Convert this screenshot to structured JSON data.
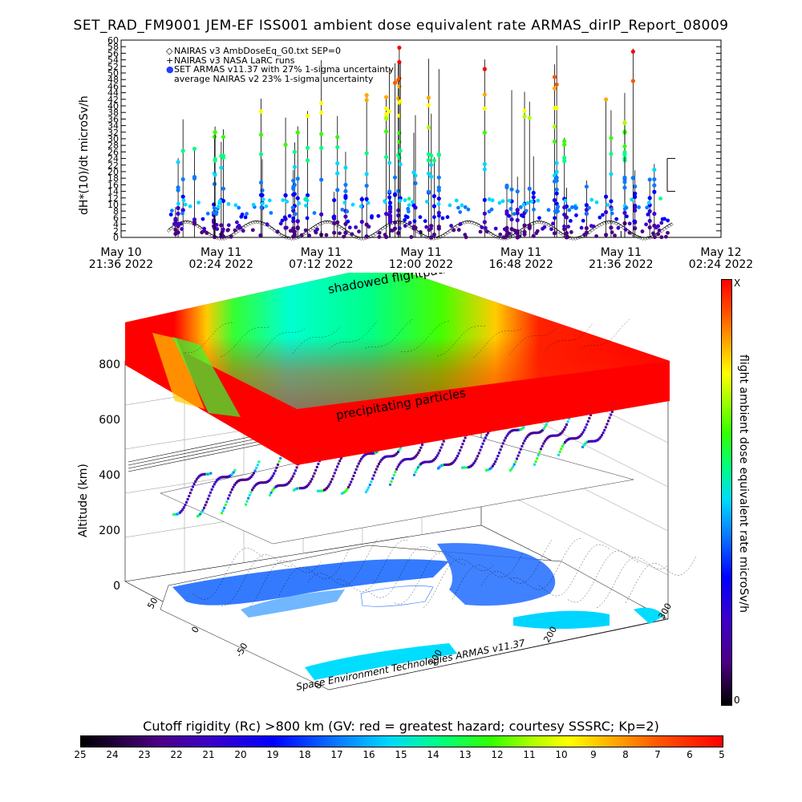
{
  "title": "SET_RAD_FM9001  JEM-EF ISS001 ambient dose equivalent rate ARMAS_dirIP_Report_08009",
  "top_chart": {
    "ylabel": "dH*(10)/dt microSv/h",
    "legend": [
      "NAIRAS v3 AmbDoseEq_G0.txt SEP=0",
      "NAIRAS v3 NASA LaRC runs",
      "SET ARMAS v11.37 with 27% 1-sigma uncertainty",
      "average NAIRAS v2 23% 1-sigma uncertainty"
    ],
    "x_ticks": [
      {
        "line1": "May 10",
        "line2": "21:36 2022"
      },
      {
        "line1": "May 11",
        "line2": "02:24 2022"
      },
      {
        "line1": "May 11",
        "line2": "07:12 2022"
      },
      {
        "line1": "May 11",
        "line2": "12:00 2022"
      },
      {
        "line1": "May 11",
        "line2": "16:48 2022"
      },
      {
        "line1": "May 11",
        "line2": "21:36 2022"
      },
      {
        "line1": "May 12",
        "line2": "02:24 2022"
      }
    ]
  },
  "globe": {
    "alt_label": "Altitude (km)",
    "alt_ticks": [
      "0",
      "200",
      "400",
      "600",
      "800"
    ],
    "shadow_label": "shadowed flightpaths",
    "precip_label": "precipitating particles",
    "lat_ticks": [
      "50",
      "0",
      "-50"
    ],
    "lon_ticks": [
      "0",
      "100",
      "200",
      "300"
    ],
    "credit": "Space Environment Technologies ARMAS v11.37"
  },
  "right_colorbar": {
    "label": "flight ambient dose equivalent rate microSv/h",
    "top": "X",
    "bottom": "0"
  },
  "bottom_colorbar": {
    "title": "Cutoff rigidity (Rc) >800 km (GV: red = greatest hazard; courtesy SSSRC; Kp=2)",
    "ticks": [
      "25",
      "24",
      "23",
      "22",
      "21",
      "20",
      "19",
      "18",
      "17",
      "16",
      "15",
      "14",
      "13",
      "12",
      "11",
      "10",
      "9",
      "8",
      "7",
      "6",
      "5"
    ]
  },
  "chart_data": {
    "type": "scatter",
    "title": "SET_RAD_FM9001  JEM-EF ISS001 ambient dose equivalent rate ARMAS_dirIP_Report_08009",
    "xlabel": "",
    "ylabel": "dH*(10)/dt microSv/h",
    "x_range": [
      "May 10 21:36 2022",
      "May 12 02:24 2022"
    ],
    "ylim": [
      0,
      60
    ],
    "y_ticks": [
      0,
      2,
      4,
      6,
      8,
      10,
      12,
      14,
      16,
      18,
      20,
      22,
      24,
      26,
      28,
      30,
      32,
      34,
      36,
      38,
      40,
      42,
      44,
      46,
      48,
      50,
      52,
      54,
      56,
      58,
      60
    ],
    "series": [
      {
        "name": "NAIRAS v3 AmbDoseEq_G0.txt SEP=0",
        "marker": "diamond",
        "color": "#000000",
        "note_values": "oscillating 0 to 6 microSv/h along orbit"
      },
      {
        "name": "SET ARMAS v11.37 with 27% 1-sigma uncertainty",
        "marker": "filled-circle",
        "color": "#1f3fff"
      }
    ]
  },
  "colors": {
    "cb_stops": [
      "#000000",
      "#4b0082",
      "#3c00c8",
      "#0000ff",
      "#0a7aff",
      "#00d8ff",
      "#00ff80",
      "#33ff00",
      "#aaff00",
      "#ffff00",
      "#ffaa00",
      "#ff5500",
      "#ff0000"
    ]
  }
}
